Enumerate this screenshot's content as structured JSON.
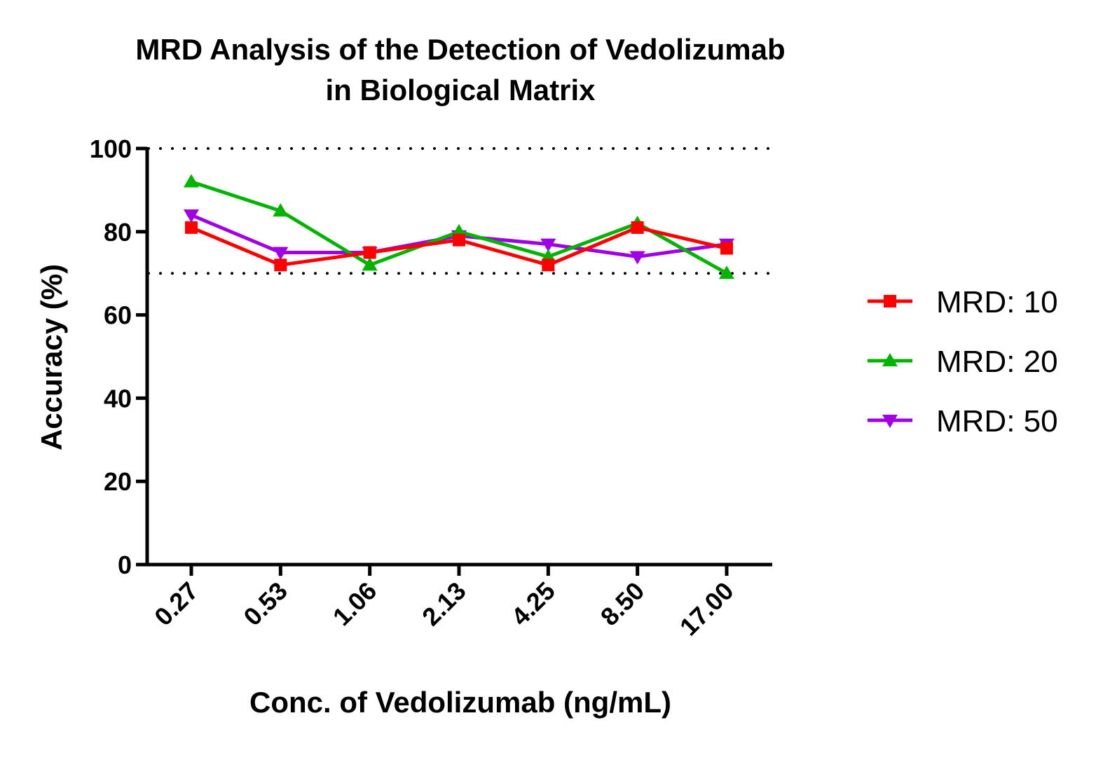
{
  "chart_data": {
    "type": "line",
    "title_lines": [
      "MRD Analysis of the Detection of Vedolizumab",
      "in Biological Matrix"
    ],
    "xlabel": "Conc. of Vedolizumab (ng/mL)",
    "ylabel": "Accuracy (%)",
    "categories": [
      "0.27",
      "0.53",
      "1.06",
      "2.13",
      "4.25",
      "8.50",
      "17.00"
    ],
    "ylim": [
      0,
      100
    ],
    "yticks": [
      0,
      20,
      40,
      60,
      80,
      100
    ],
    "reference_lines": [
      100,
      70
    ],
    "legend_position": "right",
    "grid": false,
    "series": [
      {
        "name": "MRD: 10",
        "color": "#ff0000",
        "marker": "square",
        "values": [
          81,
          72,
          75,
          78,
          72,
          81,
          76
        ]
      },
      {
        "name": "MRD: 20",
        "color": "#00b400",
        "marker": "triangle-up",
        "values": [
          92,
          85,
          72,
          80,
          74,
          82,
          70
        ]
      },
      {
        "name": "MRD: 50",
        "color": "#a000e6",
        "marker": "triangle-down",
        "values": [
          84,
          75,
          75,
          79,
          77,
          74,
          77
        ]
      }
    ]
  }
}
